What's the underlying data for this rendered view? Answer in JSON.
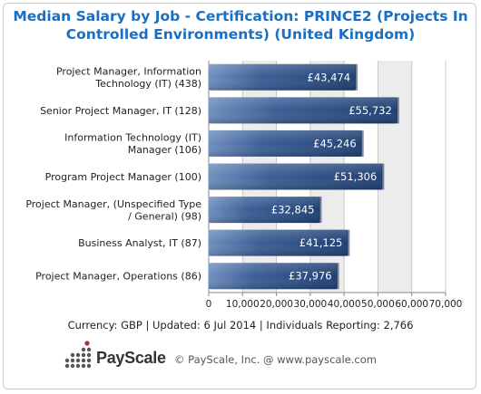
{
  "chart_data": {
    "type": "bar",
    "orientation": "horizontal",
    "title": "Median Salary by Job - Certification: PRINCE2 (Projects In Controlled Environments) (United Kingdom)",
    "title_lines": [
      "Median Salary by Job - Certification: PRINCE2 (Projects In",
      "Controlled Environments) (United Kingdom)"
    ],
    "categories": [
      [
        "Project Manager, Information",
        "Technology (IT) (438)"
      ],
      [
        "Senior Project Manager, IT (128)"
      ],
      [
        "Information Technology (IT)",
        "Manager (106)"
      ],
      [
        "Program Project Manager (100)"
      ],
      [
        "Project Manager, (Unspecified Type",
        "/ General) (98)"
      ],
      [
        "Business Analyst, IT (87)"
      ],
      [
        "Project Manager, Operations (86)"
      ]
    ],
    "values": [
      43474,
      55732,
      45246,
      51306,
      32845,
      41125,
      37976
    ],
    "value_labels": [
      "£43,474",
      "£55,732",
      "£45,246",
      "£51,306",
      "£32,845",
      "£41,125",
      "£37,976"
    ],
    "xlim": [
      0,
      70000
    ],
    "xticks": [
      0,
      10000,
      20000,
      30000,
      40000,
      50000,
      60000,
      70000
    ],
    "xtick_labels": [
      "0",
      "10,000",
      "20,000",
      "30,000",
      "40,000",
      "50,000",
      "60,000",
      "70,000"
    ],
    "grid": true,
    "bar_color": "#2b4f86",
    "band_color": "#ececec"
  },
  "footer": {
    "summary": "Currency: GBP  |  Updated: 6 Jul 2014  |  Individuals Reporting: 2,766",
    "brand": "PayScale",
    "copyright": "© PayScale, Inc. @ www.payscale.com"
  }
}
